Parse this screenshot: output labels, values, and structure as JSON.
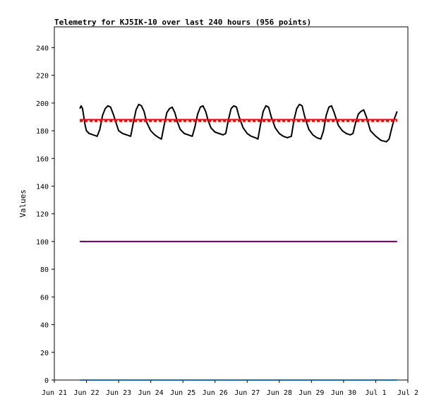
{
  "chart_data": {
    "type": "line",
    "title": "Telemetry for KJ5IK-10 over last 240 hours (956 points)",
    "xlabel": "",
    "ylabel": "Values",
    "ylim": [
      0,
      255
    ],
    "yticks": [
      0,
      20,
      40,
      60,
      80,
      100,
      120,
      140,
      160,
      180,
      200,
      220,
      240
    ],
    "xlim": [
      "2025-06-21T00:00",
      "2025-07-02T00:00"
    ],
    "xticks": [
      {
        "date": "2025-06-21",
        "label": "Jun 21"
      },
      {
        "date": "2025-06-22",
        "label": "Jun 22"
      },
      {
        "date": "2025-06-23",
        "label": "Jun 23"
      },
      {
        "date": "2025-06-24",
        "label": "Jun 24"
      },
      {
        "date": "2025-06-25",
        "label": "Jun 25"
      },
      {
        "date": "2025-06-26",
        "label": "Jun 26"
      },
      {
        "date": "2025-06-27",
        "label": "Jun 27"
      },
      {
        "date": "2025-06-28",
        "label": "Jun 28"
      },
      {
        "date": "2025-06-29",
        "label": "Jun 29"
      },
      {
        "date": "2025-06-30",
        "label": "Jun 30"
      },
      {
        "date": "2025-07-01",
        "label": "Jul 1"
      },
      {
        "date": "2025-07-02",
        "label": "Jul 2"
      }
    ],
    "grid": false,
    "legend": "none",
    "series": [
      {
        "color": "#000000",
        "style": "line",
        "points": [
          [
            "2025-06-21T19:00",
            196
          ],
          [
            "2025-06-21T20:00",
            198
          ],
          [
            "2025-06-21T21:00",
            196
          ],
          [
            "2025-06-21T22:00",
            190
          ],
          [
            "2025-06-21T23:00",
            184
          ],
          [
            "2025-06-22T00:00",
            180
          ],
          [
            "2025-06-22T02:00",
            178
          ],
          [
            "2025-06-22T05:00",
            177
          ],
          [
            "2025-06-22T08:00",
            176
          ],
          [
            "2025-06-22T10:00",
            181
          ],
          [
            "2025-06-22T12:00",
            191
          ],
          [
            "2025-06-22T14:00",
            196
          ],
          [
            "2025-06-22T16:00",
            198
          ],
          [
            "2025-06-22T18:00",
            197
          ],
          [
            "2025-06-22T20:00",
            192
          ],
          [
            "2025-06-22T22:00",
            186
          ],
          [
            "2025-06-23T00:00",
            180
          ],
          [
            "2025-06-23T03:00",
            178
          ],
          [
            "2025-06-23T06:00",
            177
          ],
          [
            "2025-06-23T09:00",
            176
          ],
          [
            "2025-06-23T11:00",
            186
          ],
          [
            "2025-06-23T13:00",
            195
          ],
          [
            "2025-06-23T15:00",
            199
          ],
          [
            "2025-06-23T17:00",
            198
          ],
          [
            "2025-06-23T19:00",
            194
          ],
          [
            "2025-06-23T21:00",
            186
          ],
          [
            "2025-06-24T00:00",
            180
          ],
          [
            "2025-06-24T03:00",
            177
          ],
          [
            "2025-06-24T06:00",
            175
          ],
          [
            "2025-06-24T08:00",
            174
          ],
          [
            "2025-06-24T10:00",
            184
          ],
          [
            "2025-06-24T12:00",
            193
          ],
          [
            "2025-06-24T14:00",
            196
          ],
          [
            "2025-06-24T16:00",
            197
          ],
          [
            "2025-06-24T18:00",
            193
          ],
          [
            "2025-06-24T20:00",
            186
          ],
          [
            "2025-06-24T22:00",
            181
          ],
          [
            "2025-06-25T01:00",
            178
          ],
          [
            "2025-06-25T04:00",
            177
          ],
          [
            "2025-06-25T07:00",
            176
          ],
          [
            "2025-06-25T09:00",
            183
          ],
          [
            "2025-06-25T11:00",
            192
          ],
          [
            "2025-06-25T13:00",
            197
          ],
          [
            "2025-06-25T15:00",
            198
          ],
          [
            "2025-06-25T17:00",
            194
          ],
          [
            "2025-06-25T19:00",
            187
          ],
          [
            "2025-06-25T21:00",
            182
          ],
          [
            "2025-06-26T00:00",
            179
          ],
          [
            "2025-06-26T03:00",
            178
          ],
          [
            "2025-06-26T06:00",
            177
          ],
          [
            "2025-06-26T08:00",
            178
          ],
          [
            "2025-06-26T10:00",
            188
          ],
          [
            "2025-06-26T12:00",
            196
          ],
          [
            "2025-06-26T14:00",
            198
          ],
          [
            "2025-06-26T16:00",
            197
          ],
          [
            "2025-06-26T18:00",
            190
          ],
          [
            "2025-06-26T21:00",
            182
          ],
          [
            "2025-06-27T00:00",
            178
          ],
          [
            "2025-06-27T03:00",
            176
          ],
          [
            "2025-06-27T06:00",
            175
          ],
          [
            "2025-06-27T08:00",
            174
          ],
          [
            "2025-06-27T10:00",
            185
          ],
          [
            "2025-06-27T12:00",
            194
          ],
          [
            "2025-06-27T14:00",
            198
          ],
          [
            "2025-06-27T16:00",
            197
          ],
          [
            "2025-06-27T18:00",
            190
          ],
          [
            "2025-06-27T21:00",
            182
          ],
          [
            "2025-06-28T00:00",
            178
          ],
          [
            "2025-06-28T03:00",
            176
          ],
          [
            "2025-06-28T06:00",
            175
          ],
          [
            "2025-06-28T09:00",
            176
          ],
          [
            "2025-06-28T11:00",
            188
          ],
          [
            "2025-06-28T13:00",
            196
          ],
          [
            "2025-06-28T15:00",
            199
          ],
          [
            "2025-06-28T17:00",
            198
          ],
          [
            "2025-06-28T19:00",
            190
          ],
          [
            "2025-06-28T22:00",
            181
          ],
          [
            "2025-06-29T01:00",
            177
          ],
          [
            "2025-06-29T04:00",
            175
          ],
          [
            "2025-06-29T07:00",
            174
          ],
          [
            "2025-06-29T09:00",
            180
          ],
          [
            "2025-06-29T11:00",
            191
          ],
          [
            "2025-06-29T13:00",
            197
          ],
          [
            "2025-06-29T15:00",
            198
          ],
          [
            "2025-06-29T17:00",
            193
          ],
          [
            "2025-06-29T20:00",
            184
          ],
          [
            "2025-06-29T23:00",
            180
          ],
          [
            "2025-06-30T02:00",
            178
          ],
          [
            "2025-06-30T05:00",
            177
          ],
          [
            "2025-06-30T07:00",
            178
          ],
          [
            "2025-06-30T09:00",
            186
          ],
          [
            "2025-06-30T11:00",
            192
          ],
          [
            "2025-06-30T13:00",
            194
          ],
          [
            "2025-06-30T15:00",
            195
          ],
          [
            "2025-06-30T17:00",
            190
          ],
          [
            "2025-06-30T20:00",
            180
          ],
          [
            "2025-07-01T00:00",
            176
          ],
          [
            "2025-07-01T04:00",
            173
          ],
          [
            "2025-07-01T08:00",
            172
          ],
          [
            "2025-07-01T10:00",
            174
          ],
          [
            "2025-07-01T12:00",
            182
          ],
          [
            "2025-07-01T14:00",
            189
          ],
          [
            "2025-07-01T16:00",
            194
          ]
        ]
      },
      {
        "color": "#ff0000",
        "style": "line",
        "points": [
          [
            "2025-06-21T19:00",
            188
          ],
          [
            "2025-07-01T16:00",
            188
          ]
        ]
      },
      {
        "color": "#ff0000",
        "style": "dashed",
        "points": [
          [
            "2025-06-21T19:00",
            187
          ],
          [
            "2025-07-01T16:00",
            187
          ]
        ]
      },
      {
        "color": "#660066",
        "style": "line",
        "points": [
          [
            "2025-06-21T19:00",
            100
          ],
          [
            "2025-07-01T16:00",
            100
          ]
        ]
      },
      {
        "color": "#1f6fb5",
        "style": "line",
        "points": [
          [
            "2025-06-21T19:00",
            0
          ],
          [
            "2025-07-01T16:00",
            0
          ]
        ]
      }
    ]
  }
}
